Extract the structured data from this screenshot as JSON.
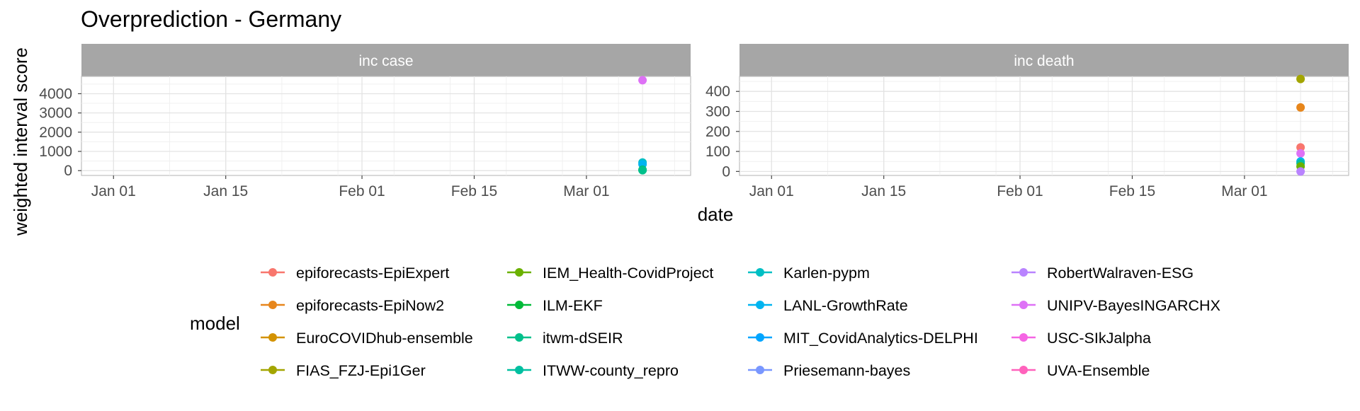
{
  "title": "Overprediction - Germany",
  "ylabel": "weighted interval score",
  "xlabel": "date",
  "legend_title": "model",
  "x_ticks": [
    "2021-01-01",
    "2021-01-15",
    "2021-02-01",
    "2021-02-15",
    "2021-03-01"
  ],
  "x_tick_labels": [
    "Jan 01",
    "Jan 15",
    "Feb 01",
    "Feb 15",
    "Mar 01"
  ],
  "chart_data": [
    {
      "type": "scatter",
      "panel": "inc case",
      "xlim": [
        "2020-12-28",
        "2021-03-14"
      ],
      "ylim": [
        -250,
        4900
      ],
      "y_ticks": [
        0,
        1000,
        2000,
        3000,
        4000
      ],
      "points": [
        {
          "model": "UNIPV-BayesINGARCHX",
          "x": "2021-03-08",
          "y": 4700
        },
        {
          "model": "Karlen-pypm",
          "x": "2021-03-08",
          "y": 420
        },
        {
          "model": "LANL-GrowthRate",
          "x": "2021-03-08",
          "y": 330
        },
        {
          "model": "ILM-EKF",
          "x": "2021-03-08",
          "y": 40
        },
        {
          "model": "itwm-dSEIR",
          "x": "2021-03-08",
          "y": 20
        }
      ]
    },
    {
      "type": "scatter",
      "panel": "inc death",
      "xlim": [
        "2020-12-28",
        "2021-03-14"
      ],
      "ylim": [
        -20,
        475
      ],
      "y_ticks": [
        0,
        100,
        200,
        300,
        400
      ],
      "points": [
        {
          "model": "FIAS_FZJ-Epi1Ger",
          "x": "2021-03-08",
          "y": 462
        },
        {
          "model": "epiforecasts-EpiNow2",
          "x": "2021-03-08",
          "y": 320
        },
        {
          "model": "epiforecasts-EpiExpert",
          "x": "2021-03-08",
          "y": 120
        },
        {
          "model": "UNIPV-BayesINGARCHX",
          "x": "2021-03-08",
          "y": 90
        },
        {
          "model": "LANL-GrowthRate",
          "x": "2021-03-08",
          "y": 50
        },
        {
          "model": "ITWW-county_repro",
          "x": "2021-03-08",
          "y": 40
        },
        {
          "model": "IEM_Health-CovidProject",
          "x": "2021-03-08",
          "y": 25
        },
        {
          "model": "RobertWalraven-ESG",
          "x": "2021-03-08",
          "y": 0
        }
      ]
    }
  ],
  "legend": [
    {
      "name": "epiforecasts-EpiExpert",
      "color": "#F8766D"
    },
    {
      "name": "epiforecasts-EpiNow2",
      "color": "#E7861B"
    },
    {
      "name": "EuroCOVIDhub-ensemble",
      "color": "#D39200"
    },
    {
      "name": "FIAS_FZJ-Epi1Ger",
      "color": "#A3A500"
    },
    {
      "name": "IEM_Health-CovidProject",
      "color": "#6BB100"
    },
    {
      "name": "ILM-EKF",
      "color": "#00BA38"
    },
    {
      "name": "itwm-dSEIR",
      "color": "#00C08B"
    },
    {
      "name": "ITWW-county_repro",
      "color": "#00BFA0"
    },
    {
      "name": "Karlen-pypm",
      "color": "#00BFC4"
    },
    {
      "name": "LANL-GrowthRate",
      "color": "#00B4F0"
    },
    {
      "name": "MIT_CovidAnalytics-DELPHI",
      "color": "#00A5FF"
    },
    {
      "name": "Priesemann-bayes",
      "color": "#7997FF"
    },
    {
      "name": "RobertWalraven-ESG",
      "color": "#B983FF"
    },
    {
      "name": "UNIPV-BayesINGARCHX",
      "color": "#DE71F6"
    },
    {
      "name": "USC-SIkJalpha",
      "color": "#F564E3"
    },
    {
      "name": "UVA-Ensemble",
      "color": "#FF62BC"
    }
  ]
}
